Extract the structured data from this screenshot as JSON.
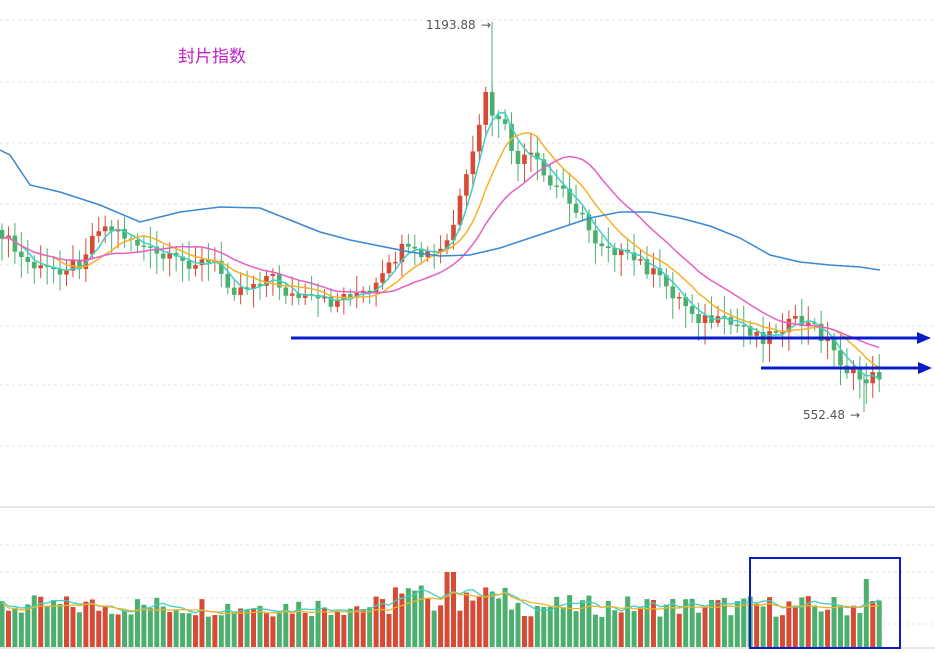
{
  "title": "封片指数",
  "colors": {
    "up": "#d64b35",
    "down": "#4caf6e",
    "ma5": "#40d0c0",
    "ma10": "#f5b128",
    "ma20": "#e65fc5",
    "ma60": "#3a88d0",
    "annotation": "#0a1dc8",
    "grid": "#e6e6e6",
    "title": "#c020c8"
  },
  "chart_data": {
    "type": "candlestick",
    "title": "封片指数",
    "high_marker": {
      "label": "1193.88",
      "value": 1193.88
    },
    "low_marker": {
      "label": "552.48",
      "value": 552.48
    },
    "price_range_shown": [
      430,
      1215
    ],
    "annotations": [
      "support-line-1",
      "support-line-2",
      "volume-box"
    ],
    "panels": [
      "price",
      "volume"
    ],
    "moving_averages": [
      "MA5",
      "MA10",
      "MA20",
      "MA60"
    ],
    "volume_range_shown": [
      0,
      100
    ]
  }
}
